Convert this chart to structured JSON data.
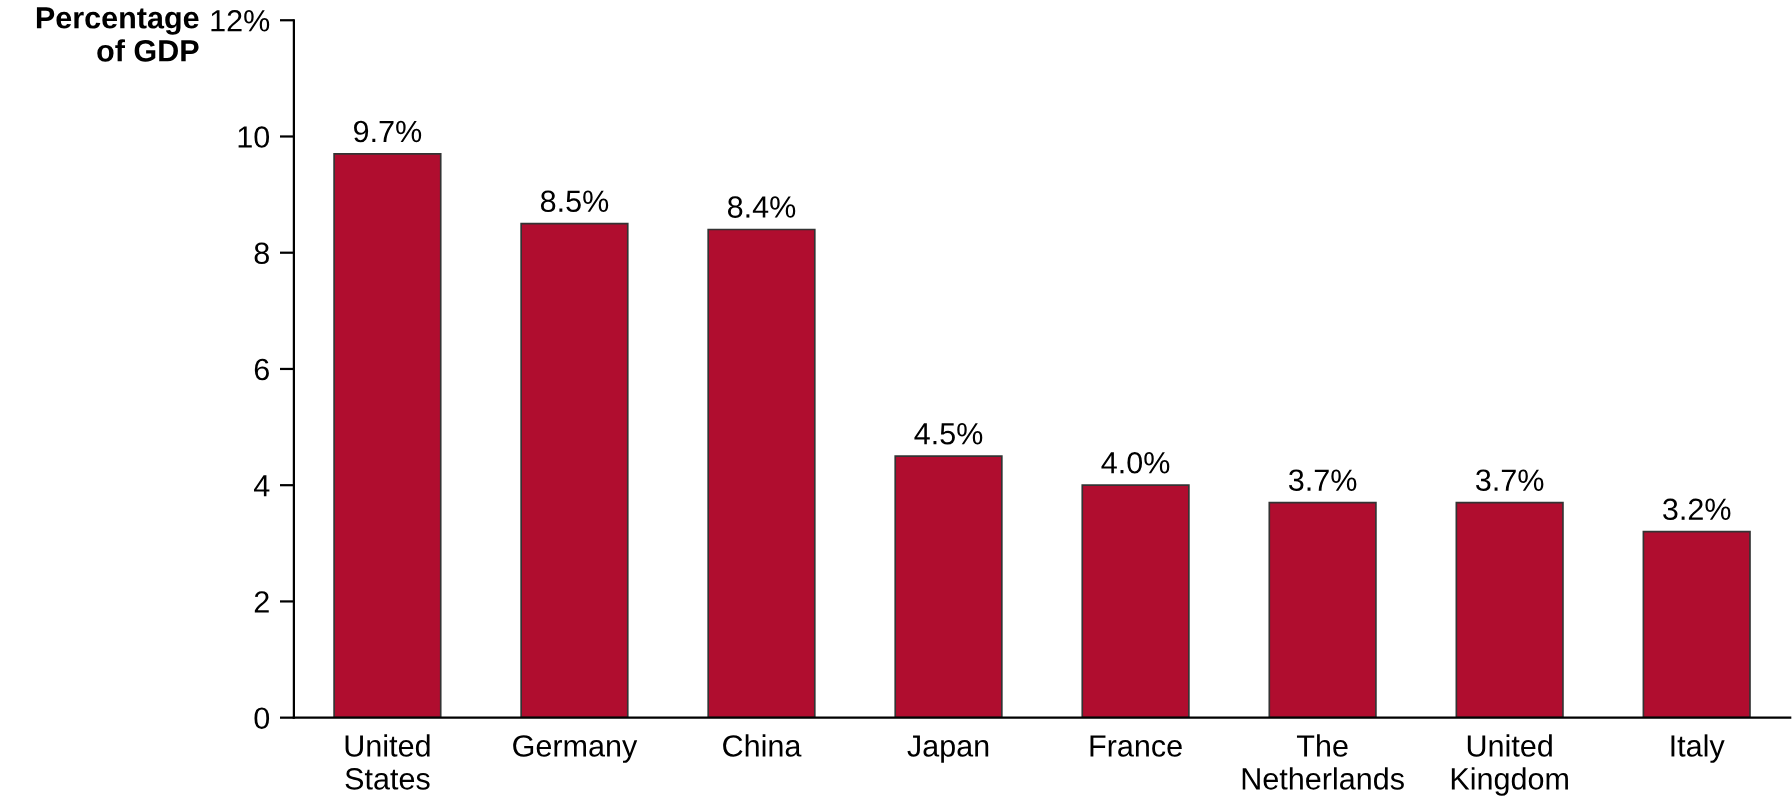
{
  "chart_data": {
    "type": "bar",
    "ylabel": "Percentage\nof GDP",
    "categories": [
      "United\nStates",
      "Germany",
      "China",
      "Japan",
      "France",
      "The\nNetherlands",
      "United\nKingdom",
      "Italy"
    ],
    "values": [
      9.7,
      8.5,
      8.4,
      4.5,
      4.0,
      3.7,
      3.7,
      3.2
    ],
    "value_labels": [
      "9.7%",
      "8.5%",
      "8.4%",
      "4.5%",
      "4.0%",
      "3.7%",
      "3.7%",
      "3.2%"
    ],
    "color": "#b00d2f",
    "ylim": [
      0,
      12
    ],
    "yticks": [
      0,
      2,
      4,
      6,
      8,
      10,
      {
        "value": 12,
        "label": "12%"
      }
    ],
    "grid": false,
    "legend": false
  }
}
